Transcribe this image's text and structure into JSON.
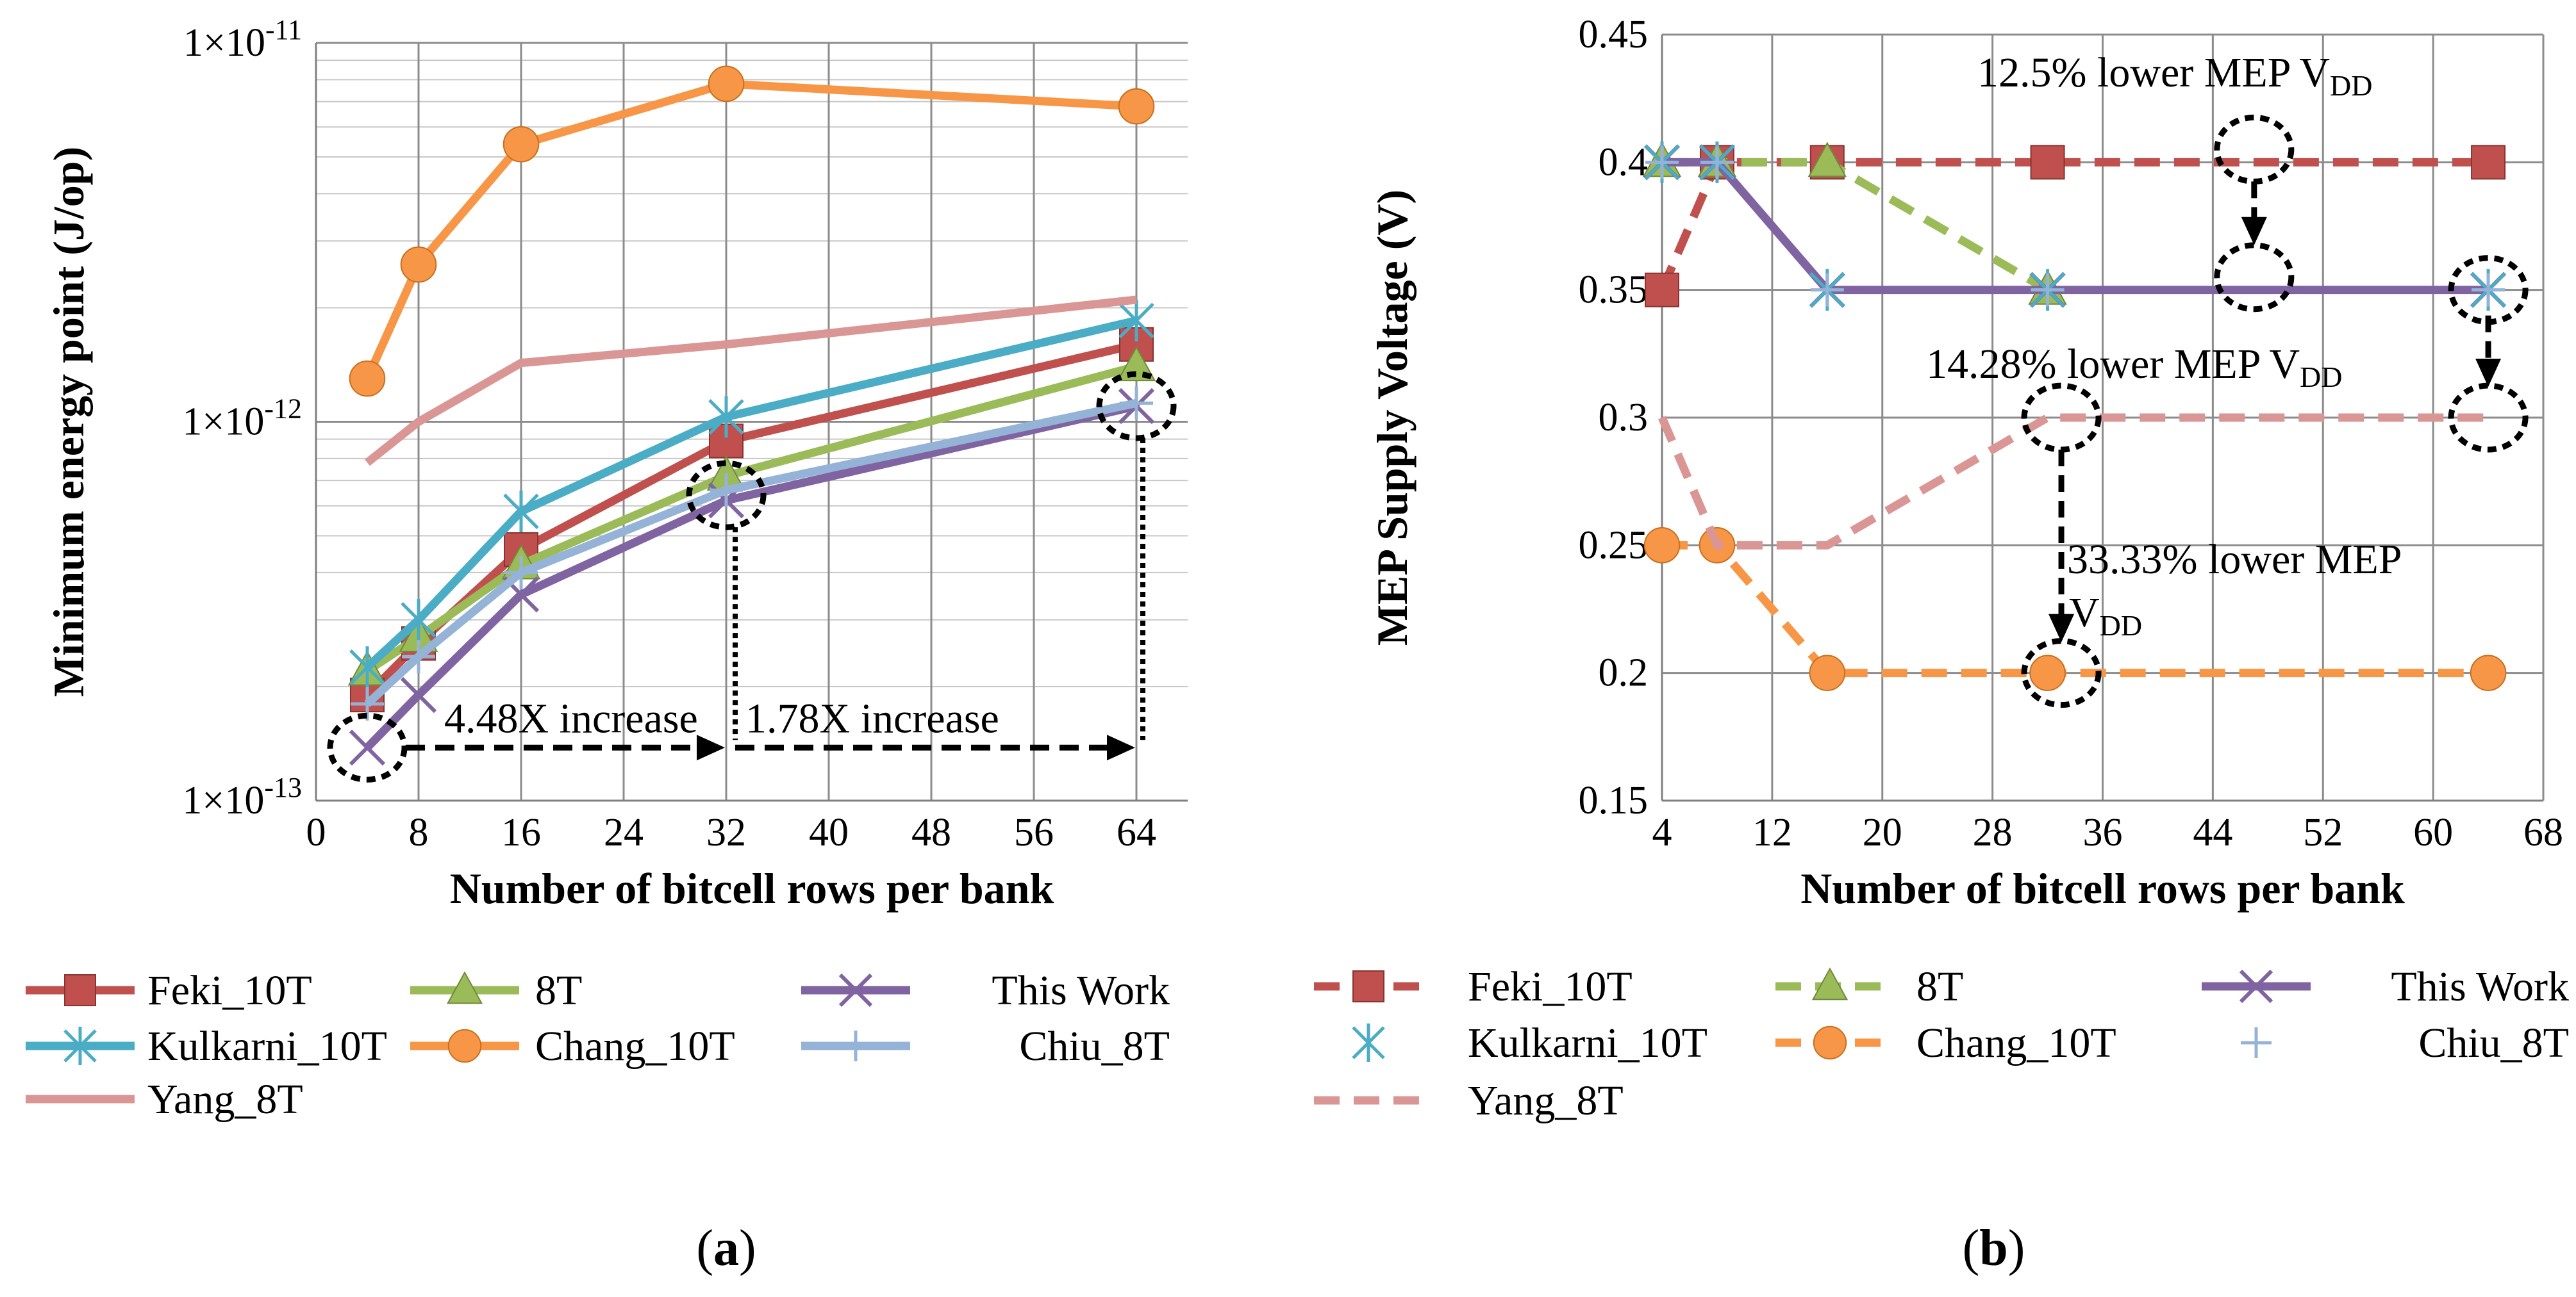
{
  "chart_data": [
    {
      "type": "line",
      "panel": "a",
      "panel_label": "a",
      "xlabel": "Number of bitcell rows per bank",
      "ylabel": "Minimum energy point (J/op)",
      "xlim": [
        0,
        68
      ],
      "x_ticks": [
        0,
        8,
        16,
        24,
        32,
        40,
        48,
        56,
        64
      ],
      "y_scale": "log",
      "ylim": [
        1e-13,
        1e-11
      ],
      "y_ticks": [
        {
          "value": 1e-11,
          "base": "1×10",
          "exp": "-11"
        },
        {
          "value": 1e-12,
          "base": "1×10",
          "exp": "-12"
        },
        {
          "value": 1e-13,
          "base": "1×10",
          "exp": "-13"
        }
      ],
      "grid": true,
      "series": [
        {
          "name": "Feki_10T",
          "color": "#C0504D",
          "marker": "square",
          "dash": "solid",
          "x": [
            4,
            8,
            16,
            32,
            64
          ],
          "y": [
            1.9e-13,
            2.6e-13,
            4.6e-13,
            8.9e-13,
            1.6e-12
          ]
        },
        {
          "name": "8T",
          "color": "#9BBB59",
          "marker": "triangle",
          "dash": "solid",
          "x": [
            4,
            8,
            16,
            32,
            64
          ],
          "y": [
            2.2e-13,
            2.7e-13,
            4.2e-13,
            7.2e-13,
            1.4e-12
          ]
        },
        {
          "name": "This Work",
          "color": "#8064A2",
          "marker": "x",
          "dash": "solid",
          "x": [
            4,
            8,
            16,
            32,
            64
          ],
          "y": [
            1.38e-13,
            1.9e-13,
            3.5e-13,
            6.2e-13,
            1.1e-12
          ]
        },
        {
          "name": "Kulkarni_10T",
          "color": "#4BACC6",
          "marker": "asterisk",
          "dash": "solid",
          "x": [
            4,
            8,
            16,
            32,
            64
          ],
          "y": [
            2.25e-13,
            3e-13,
            5.8e-13,
            1.03e-12,
            1.85e-12
          ]
        },
        {
          "name": "Chang_10T",
          "color": "#F79646",
          "marker": "circle",
          "dash": "solid",
          "x": [
            4,
            8,
            16,
            32,
            64
          ],
          "y": [
            1.3e-12,
            2.6e-12,
            5.4e-12,
            7.8e-12,
            6.8e-12
          ]
        },
        {
          "name": "Chiu_8T",
          "color": "#95B3D7",
          "marker": "plus",
          "dash": "solid",
          "x": [
            4,
            8,
            16,
            32,
            64
          ],
          "y": [
            1.8e-13,
            2.4e-13,
            4e-13,
            6.6e-13,
            1.12e-12
          ]
        },
        {
          "name": "Yang_8T",
          "color": "#D99694",
          "marker": "none",
          "dash": "solid",
          "x": [
            4,
            8,
            16,
            32,
            64
          ],
          "y": [
            7.8e-13,
            1e-12,
            1.43e-12,
            1.6e-12,
            2.1e-12
          ]
        }
      ],
      "annotations": [
        {
          "text": "4.48X increase",
          "anchor_x": 18,
          "anchor_y": 1.6e-13
        },
        {
          "text": "1.78X increase",
          "anchor_x": 47,
          "anchor_y": 1.6e-13
        }
      ],
      "highlight_points": [
        {
          "x": 4,
          "y": 1.38e-13
        },
        {
          "x": 32,
          "y": 6.4e-13
        },
        {
          "x": 64,
          "y": 1.1e-12
        }
      ],
      "legend": {
        "placement": "bottom"
      }
    },
    {
      "type": "line",
      "panel": "b",
      "panel_label": "b",
      "xlabel": "Number of bitcell rows per bank",
      "ylabel": "MEP Supply Voltage (V)",
      "xlim": [
        4,
        68
      ],
      "x_ticks": [
        4,
        12,
        20,
        28,
        36,
        44,
        52,
        60,
        68
      ],
      "ylim": [
        0.15,
        0.45
      ],
      "y_ticks": [
        {
          "value": 0.15,
          "label": "0.15"
        },
        {
          "value": 0.2,
          "label": "0.2"
        },
        {
          "value": 0.25,
          "label": "0.25"
        },
        {
          "value": 0.3,
          "label": "0.3"
        },
        {
          "value": 0.35,
          "label": "0.35"
        },
        {
          "value": 0.4,
          "label": "0.4"
        },
        {
          "value": 0.45,
          "label": "0.45"
        }
      ],
      "grid": true,
      "series": [
        {
          "name": "Feki_10T",
          "color": "#C0504D",
          "marker": "square",
          "dash": "dashed",
          "x": [
            4,
            8,
            16,
            32,
            64
          ],
          "y": [
            0.35,
            0.4,
            0.4,
            0.4,
            0.4
          ]
        },
        {
          "name": "8T",
          "color": "#9BBB59",
          "marker": "triangle",
          "dash": "dashed",
          "x": [
            4,
            8,
            16,
            32
          ],
          "y": [
            0.4,
            0.4,
            0.4,
            0.35
          ]
        },
        {
          "name": "This Work",
          "color": "#8064A2",
          "marker": "x",
          "dash": "solid",
          "x": [
            4,
            8,
            16,
            32,
            64
          ],
          "y": [
            0.4,
            0.4,
            0.35,
            0.35,
            0.35
          ]
        },
        {
          "name": "Kulkarni_10T",
          "color": "#4BACC6",
          "marker": "asterisk",
          "dash": "none",
          "x": [
            4,
            8,
            16,
            32,
            64
          ],
          "y": [
            0.4,
            0.4,
            0.35,
            0.35,
            0.35
          ]
        },
        {
          "name": "Chang_10T",
          "color": "#F79646",
          "marker": "circle",
          "dash": "dashed",
          "x": [
            4,
            8,
            16,
            32,
            64
          ],
          "y": [
            0.25,
            0.25,
            0.2,
            0.2,
            0.2
          ]
        },
        {
          "name": "Chiu_8T",
          "color": "#95B3D7",
          "marker": "plus",
          "dash": "none",
          "x": [
            4,
            8,
            16,
            32,
            64
          ],
          "y": [
            0.4,
            0.4,
            0.35,
            0.35,
            0.35
          ]
        },
        {
          "name": "Yang_8T",
          "color": "#D99694",
          "marker": "none",
          "dash": "dashed",
          "x": [
            4,
            8,
            16,
            32,
            64
          ],
          "y": [
            0.3,
            0.25,
            0.25,
            0.3,
            0.3
          ]
        }
      ],
      "annotations": [
        {
          "text": "12.5% lower MEP V",
          "subscript": "DD",
          "anchor_x": 45,
          "anchor_y": 0.43
        },
        {
          "text": "14.28% lower MEP V",
          "subscript": "DD",
          "anchor_x": 43,
          "anchor_y": 0.315
        },
        {
          "text": "33.33% lower MEP",
          "anchor_x": 43,
          "anchor_y": 0.24
        },
        {
          "text": "V",
          "subscript": "DD",
          "anchor_x": 33,
          "anchor_y": 0.215
        }
      ],
      "highlight_points": [
        {
          "x": 47,
          "y": 0.405
        },
        {
          "x": 47,
          "y": 0.355
        },
        {
          "x": 64,
          "y": 0.35
        },
        {
          "x": 64,
          "y": 0.3
        },
        {
          "x": 33,
          "y": 0.3
        },
        {
          "x": 33,
          "y": 0.2
        }
      ],
      "legend": {
        "placement": "bottom"
      }
    }
  ]
}
